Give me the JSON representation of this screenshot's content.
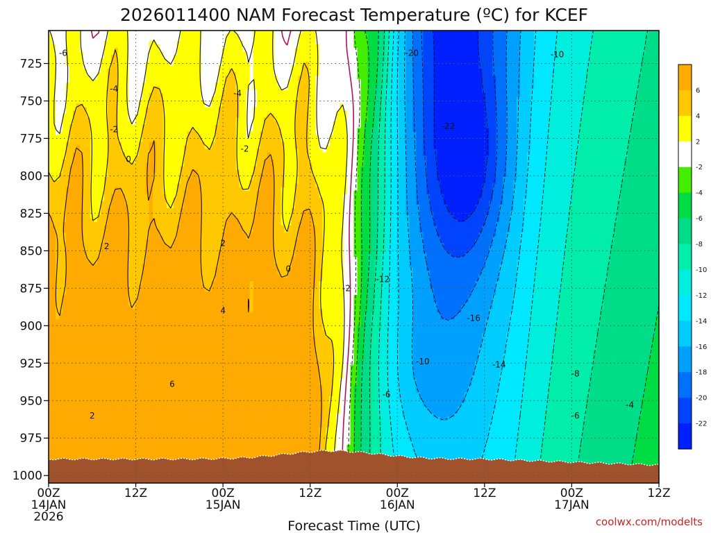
{
  "chart_data": {
    "type": "heatmap",
    "title": "2026011400 NAM Forecast Temperature (ºC) for KCEF",
    "xlabel": "Forecast Time (UTC)",
    "credit": "coolwx.com/modelts",
    "x_ticks": [
      {
        "line1": "00Z",
        "line2": "14JAN",
        "line3": "2026",
        "hour": 0
      },
      {
        "line1": "12Z",
        "line2": "",
        "line3": "",
        "hour": 12
      },
      {
        "line1": "00Z",
        "line2": "15JAN",
        "line3": "",
        "hour": 24
      },
      {
        "line1": "12Z",
        "line2": "",
        "line3": "",
        "hour": 36
      },
      {
        "line1": "00Z",
        "line2": "16JAN",
        "line3": "",
        "hour": 48
      },
      {
        "line1": "12Z",
        "line2": "",
        "line3": "",
        "hour": 60
      },
      {
        "line1": "00Z",
        "line2": "17JAN",
        "line3": "",
        "hour": 72
      },
      {
        "line1": "12Z",
        "line2": "",
        "line3": "",
        "hour": 84
      }
    ],
    "xlim_hours": [
      0,
      84
    ],
    "y_ticks": [
      "725",
      "750",
      "775",
      "800",
      "825",
      "850",
      "875",
      "900",
      "925",
      "950",
      "975",
      "1000"
    ],
    "ylim_hpa": [
      1005,
      703
    ],
    "grid": "dotted",
    "colorbar_labels": [
      "6",
      "4",
      "2",
      "-2",
      "-4",
      "-6",
      "-8",
      "-10",
      "-12",
      "-14",
      "-16",
      "-18",
      "-20",
      "-22"
    ],
    "colorbar": [
      {
        "lo": 6,
        "hi": 8,
        "color": "#ffaa00"
      },
      {
        "lo": 4,
        "hi": 6,
        "color": "#ffc800"
      },
      {
        "lo": 2,
        "hi": 4,
        "color": "#ffff00"
      },
      {
        "lo": -2,
        "hi": 2,
        "color": "#ffffff"
      },
      {
        "lo": -4,
        "hi": -2,
        "color": "#44ee00"
      },
      {
        "lo": -6,
        "hi": -4,
        "color": "#00dd44"
      },
      {
        "lo": -8,
        "hi": -6,
        "color": "#00dd88"
      },
      {
        "lo": -10,
        "hi": -8,
        "color": "#00eeaa"
      },
      {
        "lo": -12,
        "hi": -10,
        "color": "#00eedd"
      },
      {
        "lo": -14,
        "hi": -12,
        "color": "#00e8ff"
      },
      {
        "lo": -16,
        "hi": -14,
        "color": "#00ccff"
      },
      {
        "lo": -18,
        "hi": -16,
        "color": "#00a0ff"
      },
      {
        "lo": -20,
        "hi": -18,
        "color": "#0070ff"
      },
      {
        "lo": -22,
        "hi": -20,
        "color": "#0044ff"
      },
      {
        "lo": -24,
        "hi": -22,
        "color": "#0020ff"
      }
    ],
    "terrain_color": "#a0522d",
    "contour_labels": [
      {
        "text": "-6",
        "hour": 2.0,
        "hpa": 718
      },
      {
        "text": "-4",
        "hour": 9.0,
        "hpa": 742
      },
      {
        "text": "-2",
        "hour": 9.0,
        "hpa": 769
      },
      {
        "text": "0",
        "hour": 11.0,
        "hpa": 789
      },
      {
        "text": "2",
        "hour": 8.0,
        "hpa": 847
      },
      {
        "text": "2",
        "hour": 24.0,
        "hpa": 845
      },
      {
        "text": "4",
        "hour": 24.0,
        "hpa": 890
      },
      {
        "text": "6",
        "hour": 17.0,
        "hpa": 939
      },
      {
        "text": "2",
        "hour": 6.0,
        "hpa": 960
      },
      {
        "text": "-4",
        "hour": 26.0,
        "hpa": 745
      },
      {
        "text": "-2",
        "hour": 27.0,
        "hpa": 782
      },
      {
        "text": "0",
        "hour": 33.0,
        "hpa": 862
      },
      {
        "text": "-2",
        "hour": 41.0,
        "hpa": 875
      },
      {
        "text": "-12",
        "hour": 46.0,
        "hpa": 869
      },
      {
        "text": "-20",
        "hour": 50.0,
        "hpa": 718
      },
      {
        "text": "-22",
        "hour": 55.0,
        "hpa": 767
      },
      {
        "text": "-16",
        "hour": 58.5,
        "hpa": 895
      },
      {
        "text": "-14",
        "hour": 62.0,
        "hpa": 926
      },
      {
        "text": "-10",
        "hour": 51.5,
        "hpa": 924
      },
      {
        "text": "-6",
        "hour": 46.5,
        "hpa": 946
      },
      {
        "text": "-10",
        "hour": 70.0,
        "hpa": 719
      },
      {
        "text": "-8",
        "hour": 72.5,
        "hpa": 932
      },
      {
        "text": "-6",
        "hour": 72.5,
        "hpa": 960
      },
      {
        "text": "-4",
        "hour": 80.0,
        "hpa": 953
      }
    ]
  }
}
